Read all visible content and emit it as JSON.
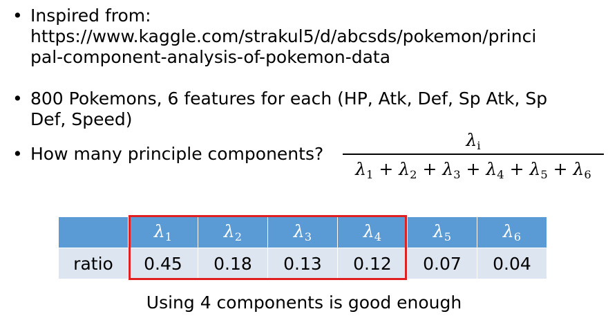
{
  "bullets": [
    {
      "lines": [
        "Inspired from:",
        "https://www.kaggle.com/strakul5/d/abcsds/pokemon/princi",
        "pal-component-analysis-of-pokemon-data"
      ]
    },
    {
      "lines": [
        "800 Pokemons, 6 features for each (HP, Atk, Def, Sp Atk, Sp",
        "Def, Speed)"
      ]
    },
    {
      "lines": [
        "How many principle components?"
      ]
    }
  ],
  "bullet_glyph": "•",
  "formula": {
    "numerator": {
      "symbol": "λ",
      "sub": "i"
    },
    "denominator": [
      {
        "symbol": "λ",
        "sub": "1"
      },
      {
        "symbol": "λ",
        "sub": "2"
      },
      {
        "symbol": "λ",
        "sub": "3"
      },
      {
        "symbol": "λ",
        "sub": "4"
      },
      {
        "symbol": "λ",
        "sub": "5"
      },
      {
        "symbol": "λ",
        "sub": "6"
      }
    ],
    "operator": "+"
  },
  "table": {
    "row_label": "ratio",
    "headers": [
      {
        "symbol": "λ",
        "sub": "1"
      },
      {
        "symbol": "λ",
        "sub": "2"
      },
      {
        "symbol": "λ",
        "sub": "3"
      },
      {
        "symbol": "λ",
        "sub": "4"
      },
      {
        "symbol": "λ",
        "sub": "5"
      },
      {
        "symbol": "λ",
        "sub": "6"
      }
    ],
    "values": [
      "0.45",
      "0.18",
      "0.13",
      "0.12",
      "0.07",
      "0.04"
    ],
    "highlighted_count": 4,
    "highlight_color": "#e02020",
    "header_color": "#5b9bd5",
    "cell_color": "#dde5f0"
  },
  "caption": "Using 4 components is good enough"
}
